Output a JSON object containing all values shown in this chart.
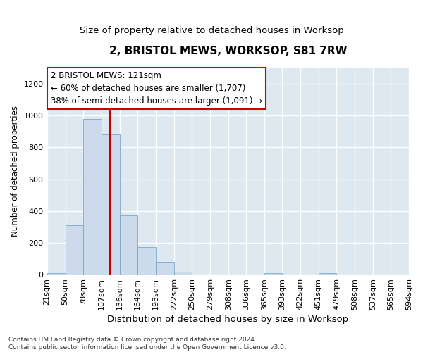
{
  "title": "2, BRISTOL MEWS, WORKSOP, S81 7RW",
  "subtitle": "Size of property relative to detached houses in Worksop",
  "xlabel": "Distribution of detached houses by size in Worksop",
  "ylabel": "Number of detached properties",
  "bar_color": "#ccdaeb",
  "bar_edge_color": "#7aaac8",
  "background_color": "#dde8f0",
  "grid_color": "#ffffff",
  "fig_background": "#ffffff",
  "property_line_color": "#cc0000",
  "property_size": 121,
  "annotation_text": "2 BRISTOL MEWS: 121sqm\n← 60% of detached houses are smaller (1,707)\n38% of semi-detached houses are larger (1,091) →",
  "annotation_box_color": "#ffffff",
  "annotation_border_color": "#cc0000",
  "bin_edges": [
    21,
    50,
    78,
    107,
    136,
    164,
    193,
    222,
    250,
    279,
    308,
    336,
    365,
    393,
    422,
    451,
    479,
    508,
    537,
    565,
    594
  ],
  "bar_heights": [
    10,
    310,
    980,
    880,
    370,
    175,
    80,
    20,
    0,
    0,
    0,
    0,
    10,
    0,
    0,
    10,
    0,
    0,
    0,
    0
  ],
  "ylim": [
    0,
    1300
  ],
  "yticks": [
    0,
    200,
    400,
    600,
    800,
    1000,
    1200
  ],
  "footer_text": "Contains HM Land Registry data © Crown copyright and database right 2024.\nContains public sector information licensed under the Open Government Licence v3.0.",
  "title_fontsize": 11,
  "subtitle_fontsize": 9.5,
  "xlabel_fontsize": 9.5,
  "ylabel_fontsize": 8.5,
  "tick_fontsize": 8,
  "footer_fontsize": 6.5,
  "annotation_fontsize": 8.5
}
